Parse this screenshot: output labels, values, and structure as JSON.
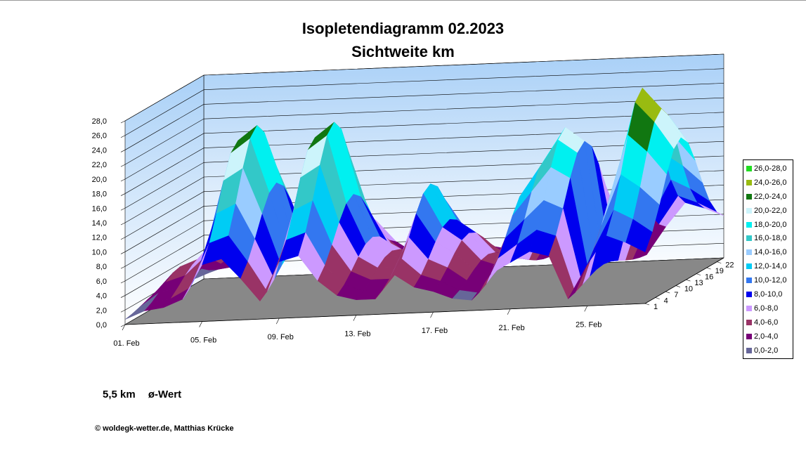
{
  "chart_data": {
    "type": "surface",
    "title": "Isopletendiagramm 02.2023",
    "subtitle": "Sichtweite km",
    "z_ticks": [
      "0,0",
      "2,0",
      "4,0",
      "6,0",
      "8,0",
      "10,0",
      "12,0",
      "14,0",
      "16,0",
      "18,0",
      "20,0",
      "22,0",
      "24,0",
      "26,0",
      "28,0"
    ],
    "zlim": [
      0,
      28
    ],
    "x_ticks": [
      "01. Feb",
      "05. Feb",
      "09. Feb",
      "13. Feb",
      "17. Feb",
      "21. Feb",
      "25. Feb"
    ],
    "y_ticks": [
      "1",
      "4",
      "7",
      "10",
      "13",
      "16",
      "19",
      "22"
    ],
    "grid": true,
    "legend_position": "right",
    "legend": [
      {
        "label": "26,0-28,0",
        "color": "#22dd22"
      },
      {
        "label": "24,0-26,0",
        "color": "#99bb11"
      },
      {
        "label": "22,0-24,0",
        "color": "#117711"
      },
      {
        "label": "20,0-22,0",
        "color": "#ccf4fb"
      },
      {
        "label": "18,0-20,0",
        "color": "#00f0f0"
      },
      {
        "label": "16,0-18,0",
        "color": "#33c8c8"
      },
      {
        "label": "14,0-16,0",
        "color": "#99ccff"
      },
      {
        "label": "12,0-14,0",
        "color": "#00ccf5"
      },
      {
        "label": "10,0-12,0",
        "color": "#3377f0"
      },
      {
        "label": "8,0-10,0",
        "color": "#0000ee"
      },
      {
        "label": "6,0-8,0",
        "color": "#cc99ff"
      },
      {
        "label": "4,0-6,0",
        "color": "#993366"
      },
      {
        "label": "2,0-4,0",
        "color": "#770077"
      },
      {
        "label": "0,0-2,0",
        "color": "#666699"
      }
    ],
    "daily_max": [
      2,
      5,
      6,
      9,
      22,
      24,
      16,
      7,
      22,
      24,
      14,
      8,
      6,
      6,
      15,
      10,
      8,
      5,
      4,
      14,
      18,
      22,
      20,
      3,
      16,
      27,
      24,
      20
    ],
    "average": {
      "value": "5,5 km",
      "label": "ø-Wert"
    }
  },
  "footer": {
    "copyright": "© woldegk-wetter.de, Matthias Krücke"
  }
}
